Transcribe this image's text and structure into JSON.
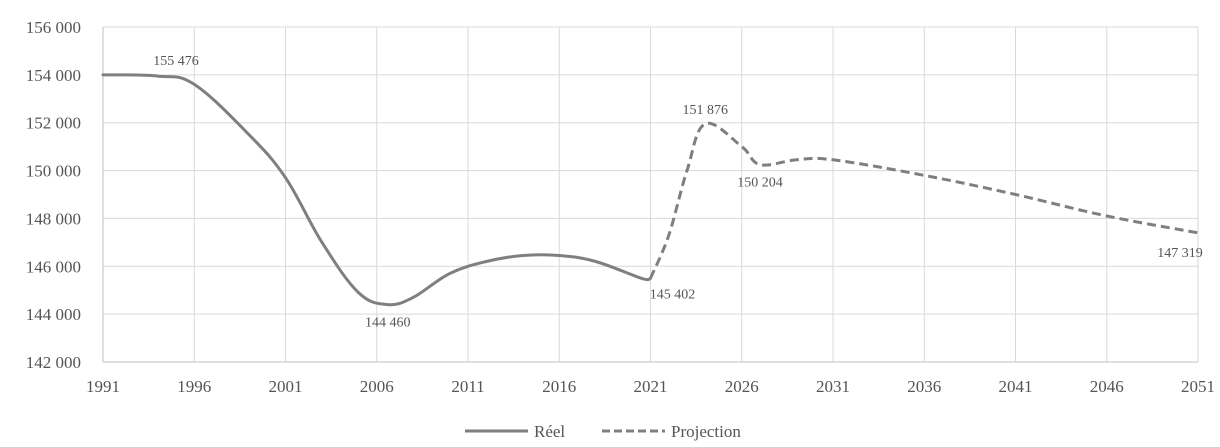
{
  "chart_data": {
    "type": "line",
    "title": "",
    "xlabel": "",
    "ylabel": "",
    "xlim": [
      1991,
      2051
    ],
    "ylim": [
      142000,
      156000
    ],
    "x_ticks": [
      1991,
      1996,
      2001,
      2006,
      2011,
      2016,
      2021,
      2026,
      2031,
      2036,
      2041,
      2046,
      2051
    ],
    "y_ticks": [
      142000,
      144000,
      146000,
      148000,
      150000,
      152000,
      154000,
      156000
    ],
    "x_tick_labels": [
      "1991",
      "1996",
      "2001",
      "2006",
      "2011",
      "2016",
      "2021",
      "2026",
      "2031",
      "2036",
      "2041",
      "2046",
      "2051"
    ],
    "y_tick_labels": [
      "142 000",
      "144 000",
      "146 000",
      "148 000",
      "150 000",
      "152 000",
      "154 000",
      "156 000"
    ],
    "grid": true,
    "legend_position": "bottom-center",
    "series": [
      {
        "name": "Réel",
        "color": "#7f7f7f",
        "style": "solid",
        "points": [
          [
            1991,
            154000
          ],
          [
            1994,
            153950
          ],
          [
            1996,
            153600
          ],
          [
            1999,
            151500
          ],
          [
            2001,
            149700
          ],
          [
            2003,
            147000
          ],
          [
            2005,
            144900
          ],
          [
            2006.6,
            144400
          ],
          [
            2008,
            144700
          ],
          [
            2010,
            145700
          ],
          [
            2012,
            146200
          ],
          [
            2014,
            146450
          ],
          [
            2016,
            146450
          ],
          [
            2018,
            146200
          ],
          [
            2020.5,
            145500
          ],
          [
            2021,
            145500
          ]
        ]
      },
      {
        "name": "Projection",
        "color": "#7f7f7f",
        "style": "dashed",
        "points": [
          [
            2021,
            145500
          ],
          [
            2022,
            147300
          ],
          [
            2023,
            150000
          ],
          [
            2024,
            151950
          ],
          [
            2026,
            151000
          ],
          [
            2027,
            150250
          ],
          [
            2029,
            150450
          ],
          [
            2031,
            150450
          ],
          [
            2036,
            149800
          ],
          [
            2041,
            149000
          ],
          [
            2046,
            148100
          ],
          [
            2051,
            147400
          ]
        ]
      }
    ],
    "annotations": [
      {
        "text": "155 476",
        "x": 1995,
        "y": 154000,
        "anchor": "above"
      },
      {
        "text": "144 460",
        "x": 2006.6,
        "y": 144400,
        "anchor": "below"
      },
      {
        "text": "145 402",
        "x": 2021,
        "y": 145500,
        "anchor": "below-right"
      },
      {
        "text": "151 876",
        "x": 2024,
        "y": 151950,
        "anchor": "above"
      },
      {
        "text": "150 204",
        "x": 2027,
        "y": 150250,
        "anchor": "below"
      },
      {
        "text": "147 319",
        "x": 2051,
        "y": 147400,
        "anchor": "below-left"
      }
    ],
    "legend": [
      {
        "label": "Réel",
        "style": "solid"
      },
      {
        "label": "Projection",
        "style": "dashed"
      }
    ]
  }
}
